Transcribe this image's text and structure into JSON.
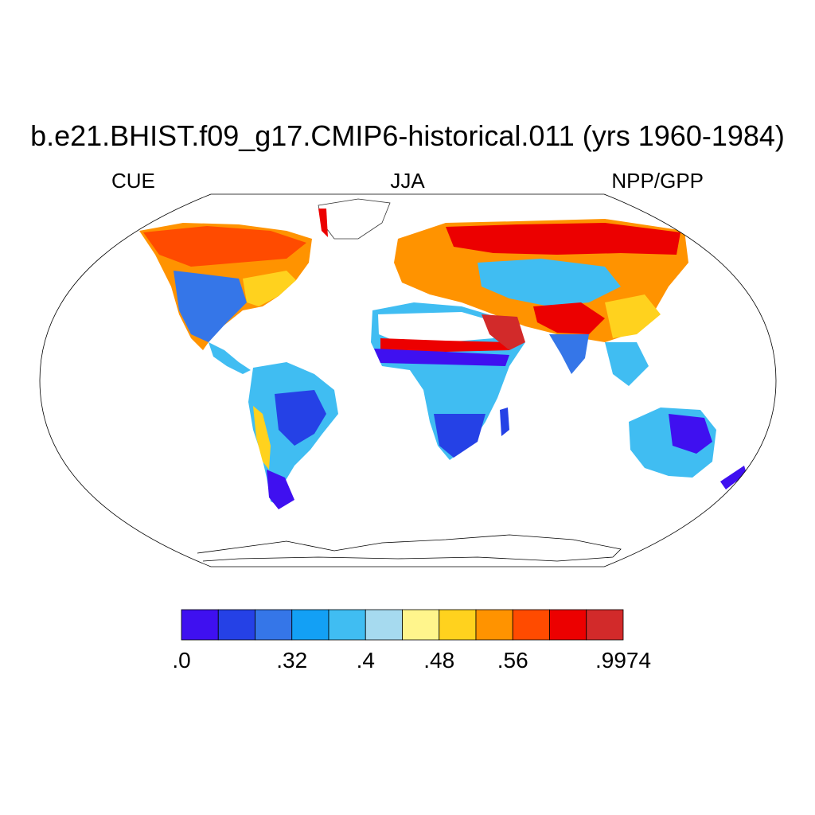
{
  "title": "b.e21.BHIST.f09_g17.CMIP6-historical.011 (yrs 1960-1984)",
  "left_string": "CUE",
  "center_string": "JJA",
  "right_string": "NPP/GPP",
  "map": {
    "projection": "Robinson",
    "land_fill_present": true
  },
  "colorbar": {
    "colors": [
      "#3f10f0",
      "#2541e6",
      "#3576e8",
      "#13a0f5",
      "#40bdf2",
      "#a6daef",
      "#fff58c",
      "#ffd21e",
      "#ff9300",
      "#ff4b00",
      "#ec0000",
      "#d22a2a"
    ],
    "labels": [
      {
        "index": 0,
        "text": ".0"
      },
      {
        "index": 3,
        "text": ".32"
      },
      {
        "index": 5,
        "text": ".4"
      },
      {
        "index": 7,
        "text": ".48"
      },
      {
        "index": 9,
        "text": ".56"
      },
      {
        "index": 12,
        "text": ".9974"
      }
    ]
  }
}
